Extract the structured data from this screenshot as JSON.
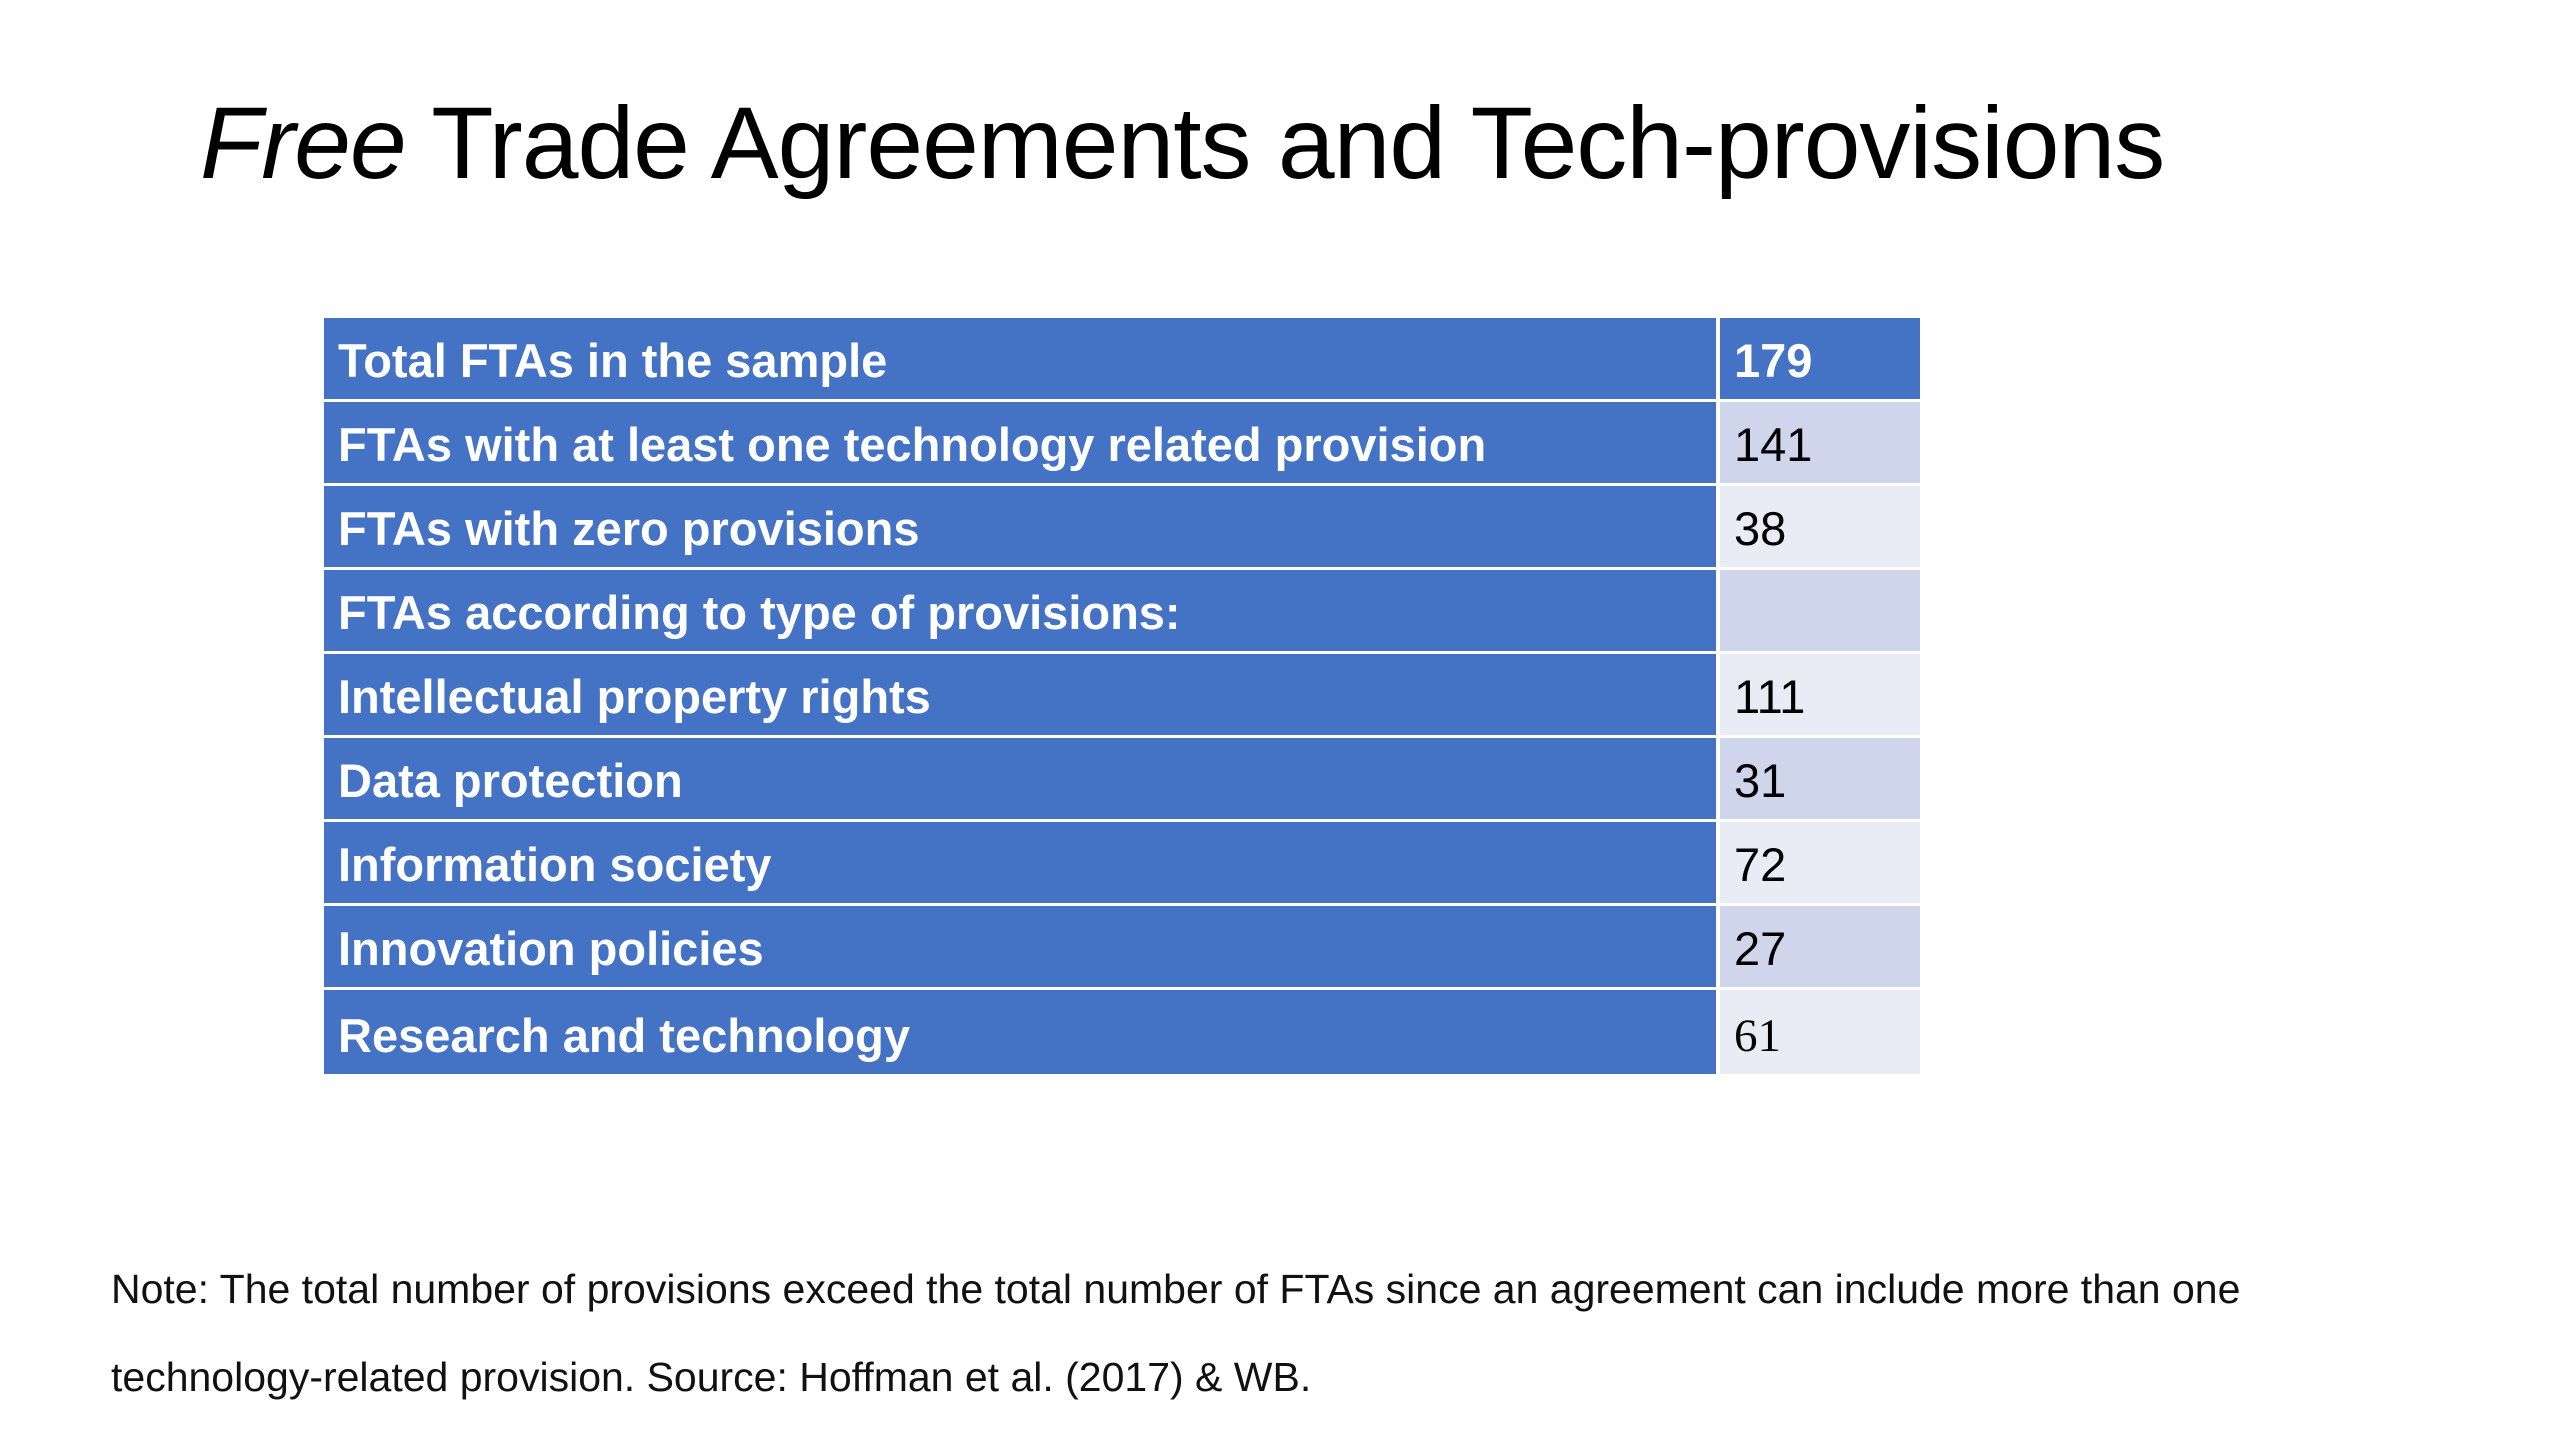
{
  "slide": {
    "title_emphasis": "Free",
    "title_rest": " Trade Agreements and Tech-provisions"
  },
  "table": {
    "rows": [
      {
        "label": "Total FTAs in the sample",
        "value": "179"
      },
      {
        "label": "FTAs with at least one technology related provision",
        "value": "141"
      },
      {
        "label": "FTAs with zero provisions",
        "value": "38"
      },
      {
        "label": "FTAs according to type of provisions:",
        "value": ""
      },
      {
        "label": "Intellectual property rights",
        "value": "111"
      },
      {
        "label": "Data protection",
        "value": "31"
      },
      {
        "label": "Information society",
        "value": "72"
      },
      {
        "label": "Innovation policies",
        "value": "27"
      },
      {
        "label": "Research and technology",
        "value": "61"
      }
    ]
  },
  "note": "Note: The total number of provisions exceed the total number of FTAs since an agreement can include more than one technology-related provision. Source: Hoffman et al. (2017) & WB.",
  "colors": {
    "header_blue": "#4472c4",
    "band_dark": "#cfd5ea",
    "band_light": "#e9ebf5"
  }
}
